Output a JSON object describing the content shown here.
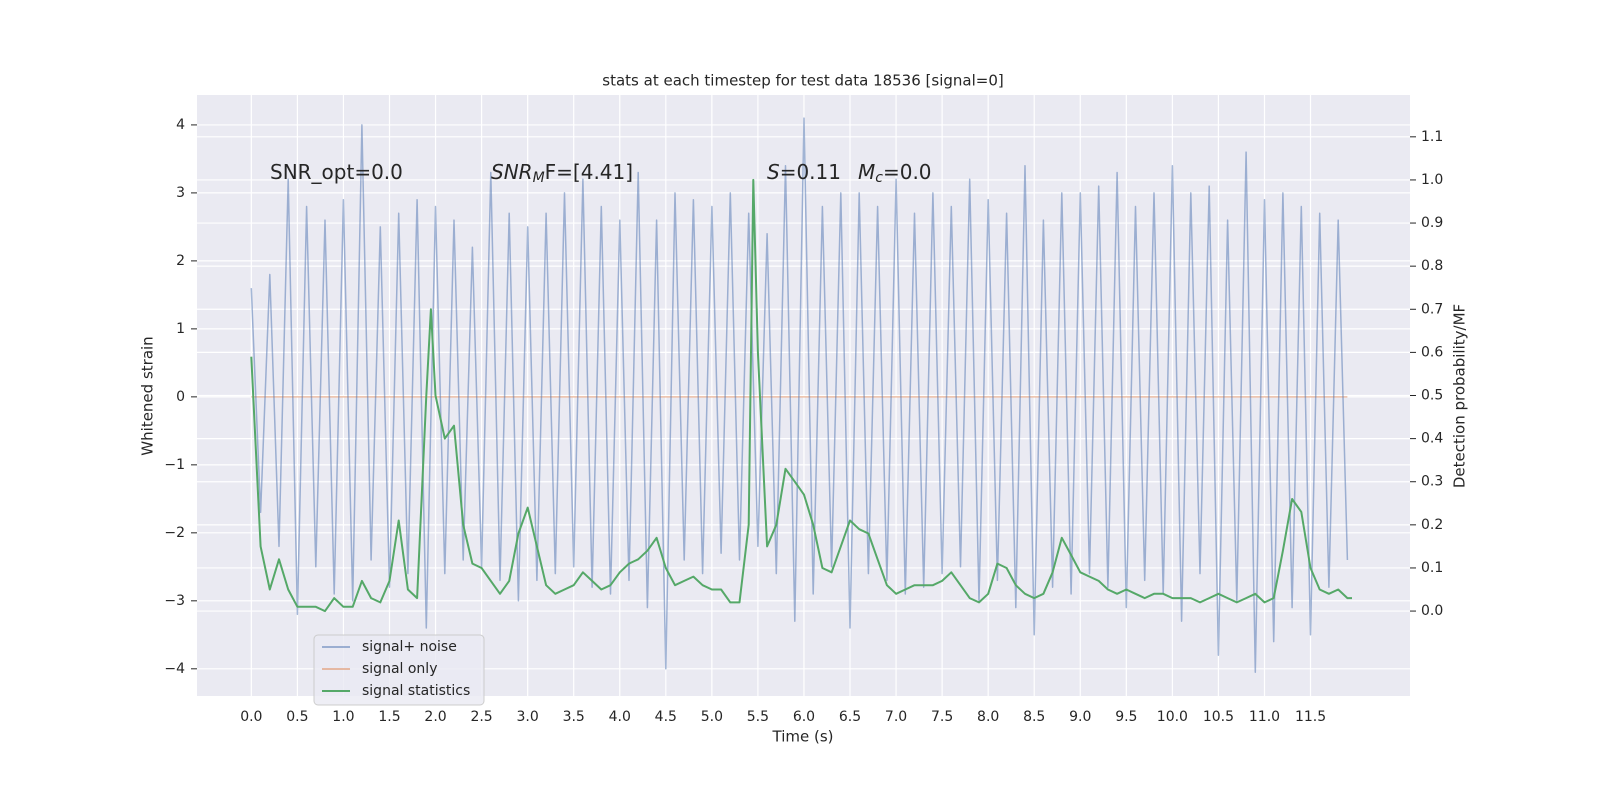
{
  "chart_data": {
    "type": "line",
    "title": "stats at each timestep for test data 18536 [signal=0]",
    "xlabel": "Time (s)",
    "ylabel": "Whitened strain",
    "y2label": "Detection probability/MF",
    "xlim": [
      -0.59,
      12.58
    ],
    "ylim": [
      -4.4,
      4.44
    ],
    "y2lim": [
      -0.197,
      1.197
    ],
    "grid": true,
    "legend": "lower left",
    "xticks": [
      {
        "value": 0,
        "label": "0.0"
      },
      {
        "value": 0.5,
        "label": "0.5"
      },
      {
        "value": 1,
        "label": "1.0"
      },
      {
        "value": 1.5,
        "label": "1.5"
      },
      {
        "value": 2,
        "label": "2.0"
      },
      {
        "value": 2.5,
        "label": "2.5"
      },
      {
        "value": 3,
        "label": "3.0"
      },
      {
        "value": 3.5,
        "label": "3.5"
      },
      {
        "value": 4,
        "label": "4.0"
      },
      {
        "value": 4.5,
        "label": "4.5"
      },
      {
        "value": 5,
        "label": "5.0"
      },
      {
        "value": 5.5,
        "label": "5.5"
      },
      {
        "value": 6,
        "label": "6.0"
      },
      {
        "value": 6.5,
        "label": "6.5"
      },
      {
        "value": 7,
        "label": "7.0"
      },
      {
        "value": 7.5,
        "label": "7.5"
      },
      {
        "value": 8,
        "label": "8.0"
      },
      {
        "value": 8.5,
        "label": "8.5"
      },
      {
        "value": 9,
        "label": "9.0"
      },
      {
        "value": 9.5,
        "label": "9.5"
      },
      {
        "value": 10,
        "label": "10.0"
      },
      {
        "value": 10.5,
        "label": "10.5"
      },
      {
        "value": 11,
        "label": "11.0"
      },
      {
        "value": 11.5,
        "label": "11.5"
      }
    ],
    "yticks": [
      {
        "value": -4,
        "label": "−4"
      },
      {
        "value": -3,
        "label": "−3"
      },
      {
        "value": -2,
        "label": "−2"
      },
      {
        "value": -1,
        "label": "−1"
      },
      0,
      1,
      2,
      3,
      4
    ],
    "y2ticks": [
      {
        "value": 0,
        "label": "0.0"
      },
      {
        "value": 0.1,
        "label": "0.1"
      },
      {
        "value": 0.2,
        "label": "0.2"
      },
      {
        "value": 0.3,
        "label": "0.3"
      },
      {
        "value": 0.4,
        "label": "0.4"
      },
      {
        "value": 0.5,
        "label": "0.5"
      },
      {
        "value": 0.6,
        "label": "0.6"
      },
      {
        "value": 0.7,
        "label": "0.7"
      },
      {
        "value": 0.8,
        "label": "0.8"
      },
      {
        "value": 0.9,
        "label": "0.9"
      },
      {
        "value": 1,
        "label": "1.0"
      },
      {
        "value": 1.1,
        "label": "1.1"
      }
    ],
    "annotations": [
      {
        "base": "SNR_opt=0.0"
      },
      {
        "base": "SNR",
        "sub": "M",
        "rest": "F=[4.41]"
      },
      {
        "base": "S",
        "rest": "=0.11"
      },
      {
        "base": "M",
        "sub": "c",
        "rest": "=0.0"
      }
    ],
    "series": [
      {
        "name": "signal+ noise",
        "color": "#4c72b0",
        "x": [
          0.0,
          0.1,
          0.2,
          0.3,
          0.4,
          0.5,
          0.6,
          0.7,
          0.8,
          0.9,
          1.0,
          1.1,
          1.2,
          1.3,
          1.4,
          1.5,
          1.6,
          1.7,
          1.8,
          1.9,
          2.0,
          2.1,
          2.2,
          2.3,
          2.4,
          2.5,
          2.6,
          2.7,
          2.8,
          2.9,
          3.0,
          3.1,
          3.2,
          3.3,
          3.4,
          3.5,
          3.6,
          3.7,
          3.8,
          3.9,
          4.0,
          4.1,
          4.2,
          4.3,
          4.4,
          4.5,
          4.6,
          4.7,
          4.8,
          4.9,
          5.0,
          5.1,
          5.2,
          5.3,
          5.4,
          5.5,
          5.6,
          5.7,
          5.8,
          5.9,
          6.0,
          6.1,
          6.2,
          6.3,
          6.4,
          6.5,
          6.6,
          6.7,
          6.8,
          6.9,
          7.0,
          7.1,
          7.2,
          7.3,
          7.4,
          7.5,
          7.6,
          7.7,
          7.8,
          7.9,
          8.0,
          8.1,
          8.2,
          8.3,
          8.4,
          8.5,
          8.6,
          8.7,
          8.8,
          8.9,
          9.0,
          9.1,
          9.2,
          9.3,
          9.4,
          9.5,
          9.6,
          9.7,
          9.8,
          9.9,
          10.0,
          10.1,
          10.2,
          10.3,
          10.4,
          10.5,
          10.6,
          10.7,
          10.8,
          10.9,
          11.0,
          11.1,
          11.2,
          11.3,
          11.4,
          11.5,
          11.6,
          11.7,
          11.8,
          11.9
        ],
        "values": [
          1.6,
          -1.7,
          1.8,
          -2.2,
          3.2,
          -3.2,
          2.8,
          -2.5,
          2.6,
          -2.9,
          2.9,
          -3.0,
          4.0,
          -2.4,
          2.5,
          -2.8,
          2.7,
          -2.6,
          2.9,
          -3.4,
          2.8,
          -2.6,
          2.6,
          -2.4,
          2.2,
          -2.5,
          3.3,
          -2.7,
          2.7,
          -3.0,
          2.5,
          -2.7,
          2.7,
          -2.6,
          3.0,
          -2.5,
          3.2,
          -2.8,
          2.8,
          -2.9,
          2.6,
          -2.7,
          3.3,
          -3.1,
          2.6,
          -4.0,
          3.0,
          -2.4,
          2.9,
          -2.6,
          2.8,
          -2.3,
          3.0,
          -2.4,
          2.7,
          -2.2,
          2.4,
          -2.6,
          3.4,
          -3.3,
          4.1,
          -2.9,
          2.8,
          -2.5,
          3.0,
          -3.4,
          3.0,
          -2.6,
          2.8,
          -2.7,
          3.2,
          -2.9,
          2.7,
          -2.8,
          3.0,
          -2.6,
          2.8,
          -2.5,
          3.2,
          -3.0,
          2.9,
          -2.7,
          2.7,
          -3.1,
          3.4,
          -3.5,
          2.6,
          -2.8,
          3.0,
          -2.9,
          3.0,
          -2.6,
          3.1,
          -2.8,
          3.3,
          -3.1,
          2.8,
          -2.7,
          3.0,
          -2.9,
          3.4,
          -3.3,
          3.0,
          -2.6,
          3.1,
          -3.8,
          2.6,
          -3.0,
          3.6,
          -4.05,
          2.9,
          -3.6,
          3.0,
          -3.1,
          2.8,
          -3.5,
          2.7,
          -2.8,
          2.6,
          -2.4
        ]
      },
      {
        "name": "signal only",
        "color": "#dd8452",
        "x": [
          0.0,
          11.9
        ],
        "values": [
          0,
          0
        ]
      },
      {
        "name": "signal statistics",
        "color": "#55a868",
        "axis": "y2",
        "x": [
          0.0,
          0.1,
          0.2,
          0.3,
          0.4,
          0.5,
          0.6,
          0.7,
          0.8,
          0.9,
          1.0,
          1.1,
          1.2,
          1.3,
          1.4,
          1.5,
          1.6,
          1.7,
          1.8,
          1.9,
          1.95,
          2.0,
          2.1,
          2.2,
          2.3,
          2.4,
          2.5,
          2.6,
          2.7,
          2.8,
          2.9,
          3.0,
          3.1,
          3.2,
          3.3,
          3.4,
          3.5,
          3.6,
          3.7,
          3.8,
          3.9,
          4.0,
          4.1,
          4.2,
          4.3,
          4.4,
          4.5,
          4.6,
          4.7,
          4.8,
          4.9,
          5.0,
          5.1,
          5.2,
          5.3,
          5.4,
          5.45,
          5.5,
          5.6,
          5.7,
          5.8,
          5.9,
          6.0,
          6.1,
          6.2,
          6.3,
          6.4,
          6.5,
          6.6,
          6.7,
          6.8,
          6.9,
          7.0,
          7.1,
          7.2,
          7.3,
          7.4,
          7.5,
          7.6,
          7.7,
          7.8,
          7.9,
          8.0,
          8.1,
          8.2,
          8.3,
          8.4,
          8.5,
          8.6,
          8.7,
          8.8,
          8.9,
          9.0,
          9.1,
          9.2,
          9.3,
          9.4,
          9.5,
          9.6,
          9.7,
          9.8,
          9.9,
          10.0,
          10.1,
          10.2,
          10.3,
          10.4,
          10.5,
          10.6,
          10.7,
          10.8,
          10.9,
          11.0,
          11.1,
          11.2,
          11.3,
          11.4,
          11.5,
          11.6,
          11.7,
          11.8,
          11.9,
          11.95
        ],
        "values": [
          0.59,
          0.15,
          0.05,
          0.12,
          0.05,
          0.01,
          0.01,
          0.01,
          0.0,
          0.03,
          0.01,
          0.01,
          0.07,
          0.03,
          0.02,
          0.07,
          0.21,
          0.05,
          0.03,
          0.5,
          0.7,
          0.5,
          0.4,
          0.43,
          0.2,
          0.11,
          0.1,
          0.07,
          0.04,
          0.07,
          0.18,
          0.24,
          0.15,
          0.06,
          0.04,
          0.05,
          0.06,
          0.09,
          0.07,
          0.05,
          0.06,
          0.09,
          0.11,
          0.12,
          0.14,
          0.17,
          0.1,
          0.06,
          0.07,
          0.08,
          0.06,
          0.05,
          0.05,
          0.02,
          0.02,
          0.2,
          1.0,
          0.6,
          0.15,
          0.2,
          0.33,
          0.3,
          0.27,
          0.2,
          0.1,
          0.09,
          0.15,
          0.21,
          0.19,
          0.18,
          0.12,
          0.06,
          0.04,
          0.05,
          0.06,
          0.06,
          0.06,
          0.07,
          0.09,
          0.06,
          0.03,
          0.02,
          0.04,
          0.11,
          0.1,
          0.06,
          0.04,
          0.03,
          0.04,
          0.09,
          0.17,
          0.13,
          0.09,
          0.08,
          0.07,
          0.05,
          0.04,
          0.05,
          0.04,
          0.03,
          0.04,
          0.04,
          0.03,
          0.03,
          0.03,
          0.02,
          0.03,
          0.04,
          0.03,
          0.02,
          0.03,
          0.04,
          0.02,
          0.03,
          0.14,
          0.26,
          0.23,
          0.1,
          0.05,
          0.04,
          0.05,
          0.03,
          0.03
        ]
      }
    ]
  }
}
